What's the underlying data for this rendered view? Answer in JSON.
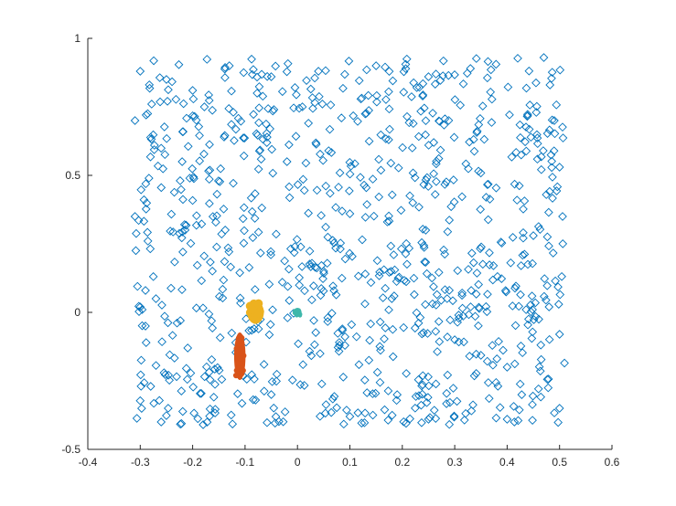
{
  "chart_data": {
    "type": "scatter",
    "title": "",
    "xlabel": "",
    "ylabel": "",
    "xlim": [
      -0.4,
      0.6
    ],
    "ylim": [
      -0.5,
      1
    ],
    "grid": false,
    "box": "left-bottom axes only",
    "x_ticks": [
      {
        "value": -0.4,
        "label": "-0.4"
      },
      {
        "value": -0.3,
        "label": "-0.3"
      },
      {
        "value": -0.2,
        "label": "-0.2"
      },
      {
        "value": -0.1,
        "label": "-0.1"
      },
      {
        "value": 0,
        "label": "0"
      },
      {
        "value": 0.1,
        "label": "0.1"
      },
      {
        "value": 0.2,
        "label": "0.2"
      },
      {
        "value": 0.3,
        "label": "0.3"
      },
      {
        "value": 0.4,
        "label": "0.4"
      },
      {
        "value": 0.5,
        "label": "0.5"
      },
      {
        "value": 0.6,
        "label": "0.6"
      }
    ],
    "y_ticks": [
      {
        "value": -0.5,
        "label": "-0.5"
      },
      {
        "value": 0,
        "label": "0"
      },
      {
        "value": 0.5,
        "label": "0.5"
      },
      {
        "value": 1,
        "label": "1"
      }
    ],
    "series": [
      {
        "marker": "diamond-open",
        "color": "#0072BD",
        "x_range": [
          -0.31,
          0.51
        ],
        "y_range": [
          -0.41,
          0.93
        ],
        "approx_count": 900,
        "sample_points": [
          [
            -0.3,
            0.88
          ],
          [
            -0.25,
            0.85
          ],
          [
            -0.2,
            0.81
          ],
          [
            -0.13,
            0.9
          ],
          [
            -0.05,
            0.86
          ],
          [
            0.04,
            0.88
          ],
          [
            0.15,
            0.9
          ],
          [
            0.25,
            0.86
          ],
          [
            0.33,
            0.89
          ],
          [
            0.47,
            0.93
          ],
          [
            0.49,
            0.7
          ],
          [
            0.5,
            0.53
          ],
          [
            -0.31,
            0.7
          ],
          [
            -0.31,
            0.35
          ],
          [
            -0.29,
            0.08
          ],
          [
            -0.29,
            -0.05
          ],
          [
            -0.28,
            -0.27
          ],
          [
            -0.26,
            -0.4
          ],
          [
            -0.18,
            -0.41
          ],
          [
            -0.05,
            -0.3
          ],
          [
            0.1,
            -0.38
          ],
          [
            0.25,
            -0.39
          ],
          [
            0.4,
            -0.39
          ],
          [
            0.5,
            -0.35
          ],
          [
            0.5,
            -0.08
          ],
          [
            0.48,
            0.02
          ],
          [
            0.45,
            0.28
          ],
          [
            0.36,
            0.42
          ],
          [
            0.22,
            0.4
          ],
          [
            0.1,
            0.36
          ],
          [
            -0.02,
            0.55
          ],
          [
            -0.14,
            0.64
          ],
          [
            -0.22,
            0.55
          ],
          [
            0.05,
            0.15
          ],
          [
            0.18,
            0.05
          ],
          [
            0.3,
            -0.1
          ],
          [
            0.4,
            -0.2
          ],
          [
            -0.08,
            -0.32
          ],
          [
            0.08,
            -0.12
          ],
          [
            0.26,
            0.62
          ]
        ]
      },
      {
        "marker": "filled-cluster",
        "color": "#D95319",
        "center": [
          -0.11,
          -0.16
        ],
        "x_range": [
          -0.12,
          -0.1
        ],
        "y_range": [
          -0.25,
          -0.08
        ]
      },
      {
        "marker": "filled-cluster",
        "color": "#EDB120",
        "center": [
          -0.08,
          0
        ],
        "x_range": [
          -0.095,
          -0.065
        ],
        "y_range": [
          -0.04,
          0.04
        ]
      },
      {
        "marker": "filled-cluster",
        "color": "#3DB7AA",
        "center": [
          0,
          0
        ],
        "x_range": [
          -0.007,
          0.007
        ],
        "y_range": [
          -0.015,
          0.015
        ]
      }
    ]
  }
}
